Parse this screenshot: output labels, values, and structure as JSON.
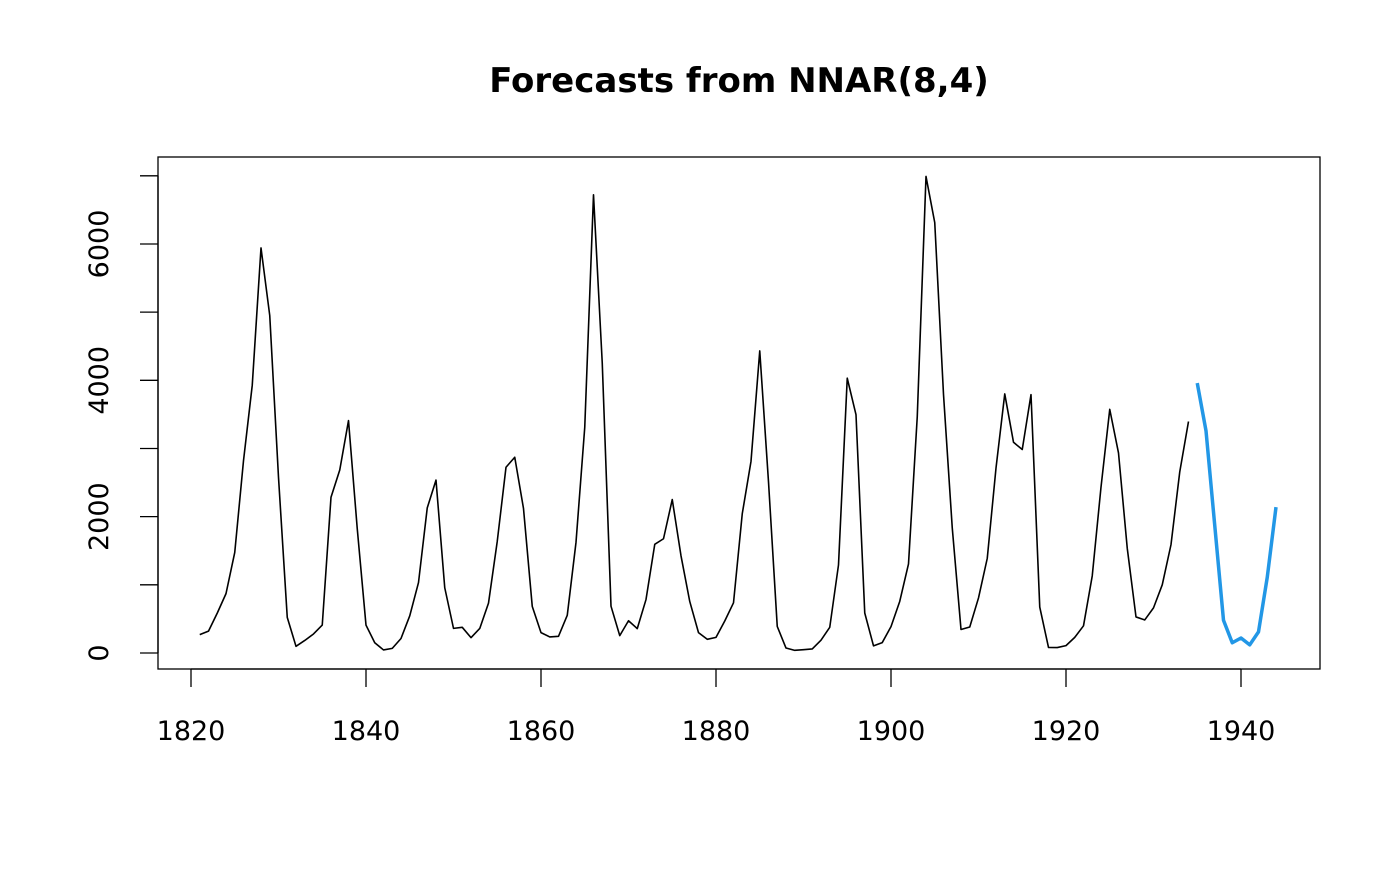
{
  "chart_data": {
    "type": "line",
    "title": "Forecasts from NNAR(8,4)",
    "xlabel": "",
    "ylabel": "",
    "xlim": [
      1815,
      1951
    ],
    "ylim": [
      -220,
      7220
    ],
    "x_ticks": [
      "1820",
      "1840",
      "1860",
      "1880",
      "1900",
      "1920",
      "1940"
    ],
    "y_ticks": [
      "0",
      "2000",
      "4000",
      "6000"
    ],
    "grid": false,
    "series": [
      {
        "name": "observed",
        "color": "#000000",
        "start": 1821,
        "values": [
          269,
          321,
          585,
          871,
          1475,
          2821,
          3928,
          5943,
          4950,
          2577,
          523,
          98,
          184,
          279,
          409,
          2285,
          2685,
          3409,
          1824,
          409,
          151,
          45,
          68,
          213,
          546,
          1033,
          2129,
          2536,
          957,
          361,
          377,
          225,
          360,
          731,
          1638,
          2725,
          2871,
          2119,
          684,
          299,
          236,
          245,
          552,
          1623,
          3311,
          6721,
          4254,
          687,
          255,
          473,
          358,
          784,
          1594,
          1676,
          2251,
          1426,
          756,
          299,
          201,
          229,
          469,
          736,
          2042,
          2811,
          4431,
          2511,
          389,
          73,
          39,
          49,
          59,
          188,
          377,
          1292,
          4031,
          3495,
          587,
          105,
          153,
          387,
          758,
          1307,
          3465,
          6991,
          6313,
          3794,
          1836,
          345,
          382,
          808,
          1388,
          2713,
          3800,
          3091,
          2985,
          3790,
          674,
          81,
          80,
          108,
          229,
          399,
          1132,
          2432,
          3574,
          2935,
          1537,
          529,
          485,
          662,
          1000,
          1590,
          2657,
          3396
        ]
      },
      {
        "name": "forecast",
        "color": "#2297E6",
        "start": 1935,
        "values": [
          3960,
          3260,
          1870,
          480,
          150,
          220,
          120,
          310,
          1110,
          2140
        ]
      }
    ]
  }
}
